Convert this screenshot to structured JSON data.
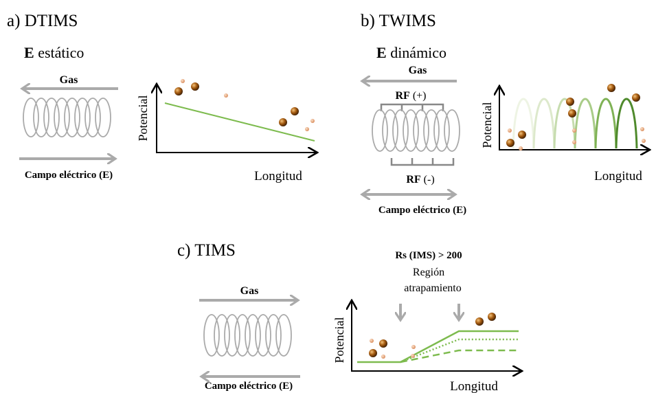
{
  "panels": [
    {
      "title": "a) DTIMS",
      "field": {
        "symbol": "E",
        "mode": "estático"
      },
      "gas": "Gas",
      "field_label": "Campo eléctrico (E)",
      "y_label": "Potencial",
      "x_label": "Longitud"
    },
    {
      "title": "b) TWIMS",
      "field": {
        "symbol": "E",
        "mode": "dinámico"
      },
      "gas": "Gas",
      "rf_top": {
        "label": "RF",
        "sign": "(+)"
      },
      "rf_bottom": {
        "label": "RF",
        "sign": "(-)"
      },
      "field_label": "Campo eléctrico (E)",
      "y_label": "Potencial",
      "x_label": "Longitud"
    },
    {
      "title": "c) TIMS",
      "gas": "Gas",
      "field_label": "Campo eléctrico (E)",
      "resolution": "Rs (IMS) > 200",
      "trap_region": [
        "Región",
        "atrapamiento"
      ],
      "y_label": "Potencial",
      "x_label": "Longitud"
    }
  ]
}
